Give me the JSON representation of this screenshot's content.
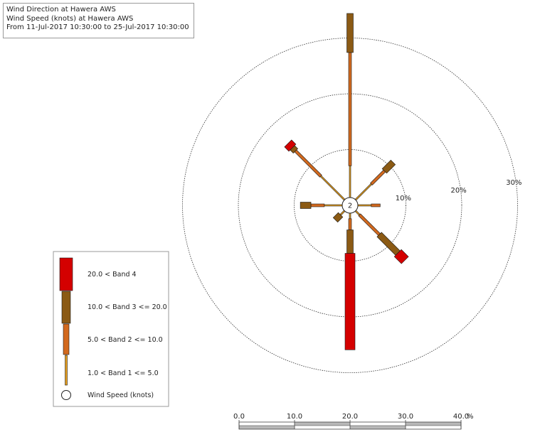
{
  "title": {
    "line1": "Wind Direction at Hawera AWS",
    "line2": "Wind Speed (knots) at Hawera AWS",
    "line3": "From 11-Jul-2017 10:30:00 to 25-Jul-2017 10:30:00"
  },
  "chart_data": {
    "type": "wind-rose",
    "calm_value": "2",
    "rings": [
      {
        "value": 10,
        "label": "10%"
      },
      {
        "value": 20,
        "label": "20%"
      },
      {
        "value": 30,
        "label": "30%"
      }
    ],
    "bands": [
      {
        "label": "1.0 < Band 1 <= 5.0",
        "color": "#e8a020"
      },
      {
        "label": "5.0 < Band 2 <= 10.0",
        "color": "#d2691e"
      },
      {
        "label": "10.0 < Band 3 <= 20.0",
        "color": "#8b5a14"
      },
      {
        "label": "20.0  < Band 4",
        "color": "#d40000"
      }
    ],
    "legend_caption": "Wind Speed (knots)",
    "directions": [
      {
        "direction": "N",
        "cumulative_percent": [
          5.7,
          26.0,
          33.0,
          33.0
        ]
      },
      {
        "direction": "NE",
        "cumulative_percent": [
          4.0,
          7.3,
          9.5,
          9.5
        ]
      },
      {
        "direction": "E",
        "cumulative_percent": [
          2.4,
          4.0,
          4.0,
          4.0
        ]
      },
      {
        "direction": "SE",
        "cumulative_percent": [
          1.0,
          6.0,
          10.7,
          12.5
        ]
      },
      {
        "direction": "S",
        "cumulative_percent": [
          1.0,
          3.0,
          7.2,
          24.5
        ]
      },
      {
        "direction": "SW",
        "cumulative_percent": [
          1.0,
          1.0,
          2.3,
          2.3
        ]
      },
      {
        "direction": "W",
        "cumulative_percent": [
          3.2,
          5.6,
          7.5,
          7.5
        ]
      },
      {
        "direction": "NW",
        "cumulative_percent": [
          6.0,
          12.4,
          13.2,
          14.3
        ]
      }
    ],
    "scale": {
      "ticks": [
        0,
        10,
        20,
        30,
        40
      ],
      "tick_labels": [
        "0.0",
        "10.0",
        "20.0",
        "30.0",
        "40.0"
      ],
      "unit": "%"
    }
  }
}
